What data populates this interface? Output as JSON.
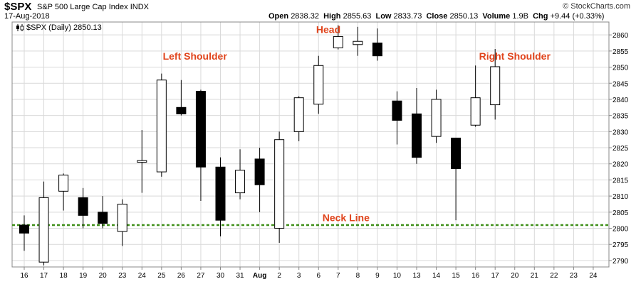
{
  "header": {
    "symbol": "$SPX",
    "name": "S&P 500 Large Cap Index",
    "exchange": "INDX",
    "date": "17-Aug-2018",
    "brand": "© StockCharts.com",
    "open_label": "Open",
    "open": "2838.32",
    "high_label": "High",
    "high": "2855.63",
    "low_label": "Low",
    "low": "2833.73",
    "close_label": "Close",
    "close": "2850.13",
    "volume_label": "Volume",
    "volume": "1.9B",
    "chg_label": "Chg",
    "chg": "+9.44 (+0.33%)"
  },
  "legend": {
    "text": "$SPX (Daily) 2850.13",
    "marker_icon": "candlestick-icon"
  },
  "colors": {
    "up_fill": "#ffffff",
    "down_fill": "#000000",
    "candle_stroke": "#000000",
    "grid": "#d9d9d9",
    "annotation": "#e0441c",
    "neckline": "#3f8f1a"
  },
  "chart_data": {
    "type": "candlestick",
    "title": "$SPX S&P 500 Large Cap Index INDX",
    "xlabel": "",
    "ylabel": "",
    "ylim": [
      2788,
      2864
    ],
    "yticks": [
      2790,
      2795,
      2800,
      2805,
      2810,
      2815,
      2820,
      2825,
      2830,
      2835,
      2840,
      2845,
      2850,
      2855,
      2860
    ],
    "xticks": [
      "16",
      "17",
      "18",
      "19",
      "20",
      "23",
      "24",
      "25",
      "26",
      "27",
      "30",
      "31",
      "Aug",
      "2",
      "3",
      "6",
      "7",
      "8",
      "9",
      "10",
      "13",
      "14",
      "15",
      "16",
      "17",
      "20",
      "21",
      "22",
      "23",
      "24"
    ],
    "grid": true,
    "candles": [
      {
        "date": "16",
        "open": 2801.0,
        "high": 2804.0,
        "low": 2793.0,
        "close": 2798.5
      },
      {
        "date": "17",
        "open": 2789.5,
        "high": 2814.5,
        "low": 2788.5,
        "close": 2809.5
      },
      {
        "date": "18",
        "open": 2811.5,
        "high": 2817.0,
        "low": 2805.5,
        "close": 2816.5
      },
      {
        "date": "19",
        "open": 2809.5,
        "high": 2812.5,
        "low": 2800.0,
        "close": 2804.0
      },
      {
        "date": "20",
        "open": 2805.0,
        "high": 2810.0,
        "low": 2800.0,
        "close": 2801.5
      },
      {
        "date": "23",
        "open": 2799.0,
        "high": 2809.0,
        "low": 2794.5,
        "close": 2807.5
      },
      {
        "date": "24",
        "open": 2820.5,
        "high": 2830.5,
        "low": 2811.0,
        "close": 2821.0
      },
      {
        "date": "25",
        "open": 2817.5,
        "high": 2848.0,
        "low": 2816.0,
        "close": 2846.0
      },
      {
        "date": "26",
        "open": 2837.5,
        "high": 2846.0,
        "low": 2835.0,
        "close": 2835.5
      },
      {
        "date": "27",
        "open": 2842.5,
        "high": 2843.0,
        "low": 2808.5,
        "close": 2819.0
      },
      {
        "date": "30",
        "open": 2819.0,
        "high": 2822.0,
        "low": 2797.5,
        "close": 2802.5
      },
      {
        "date": "31",
        "open": 2811.0,
        "high": 2824.5,
        "low": 2809.0,
        "close": 2818.0
      },
      {
        "date": "Aug",
        "open": 2821.5,
        "high": 2825.0,
        "low": 2805.0,
        "close": 2813.5
      },
      {
        "date": "2",
        "open": 2800.0,
        "high": 2830.0,
        "low": 2795.5,
        "close": 2827.5
      },
      {
        "date": "3",
        "open": 2830.0,
        "high": 2841.0,
        "low": 2827.0,
        "close": 2840.5
      },
      {
        "date": "6",
        "open": 2838.5,
        "high": 2853.5,
        "low": 2835.5,
        "close": 2850.5
      },
      {
        "date": "7",
        "open": 2856.0,
        "high": 2863.0,
        "low": 2855.5,
        "close": 2859.5
      },
      {
        "date": "8",
        "open": 2857.0,
        "high": 2862.5,
        "low": 2853.5,
        "close": 2858.0
      },
      {
        "date": "9",
        "open": 2857.5,
        "high": 2862.0,
        "low": 2852.0,
        "close": 2853.5
      },
      {
        "date": "10",
        "open": 2839.5,
        "high": 2842.5,
        "low": 2826.0,
        "close": 2833.5
      },
      {
        "date": "13",
        "open": 2835.5,
        "high": 2843.5,
        "low": 2820.0,
        "close": 2822.0
      },
      {
        "date": "14",
        "open": 2828.5,
        "high": 2843.0,
        "low": 2826.5,
        "close": 2840.0
      },
      {
        "date": "15",
        "open": 2828.0,
        "high": 2828.0,
        "low": 2802.5,
        "close": 2818.5
      },
      {
        "date": "16",
        "open": 2832.0,
        "high": 2850.5,
        "low": 2831.5,
        "close": 2840.5
      },
      {
        "date": "17",
        "open": 2838.32,
        "high": 2855.63,
        "low": 2833.73,
        "close": 2850.13
      }
    ],
    "annotations": [
      {
        "text": "Left Shoulder",
        "date_index": 8.7,
        "value": 2852.3
      },
      {
        "text": "Head",
        "date_index": 15.5,
        "value": 2860.6
      },
      {
        "text": "Right Shoulder",
        "date_index": 25.0,
        "value": 2852.3
      },
      {
        "text": "Neck Line",
        "date_index": 16.4,
        "value": 2802.2
      }
    ],
    "neckline": {
      "label": "Neck Line",
      "value": 2801.0,
      "style": "dashed"
    }
  }
}
